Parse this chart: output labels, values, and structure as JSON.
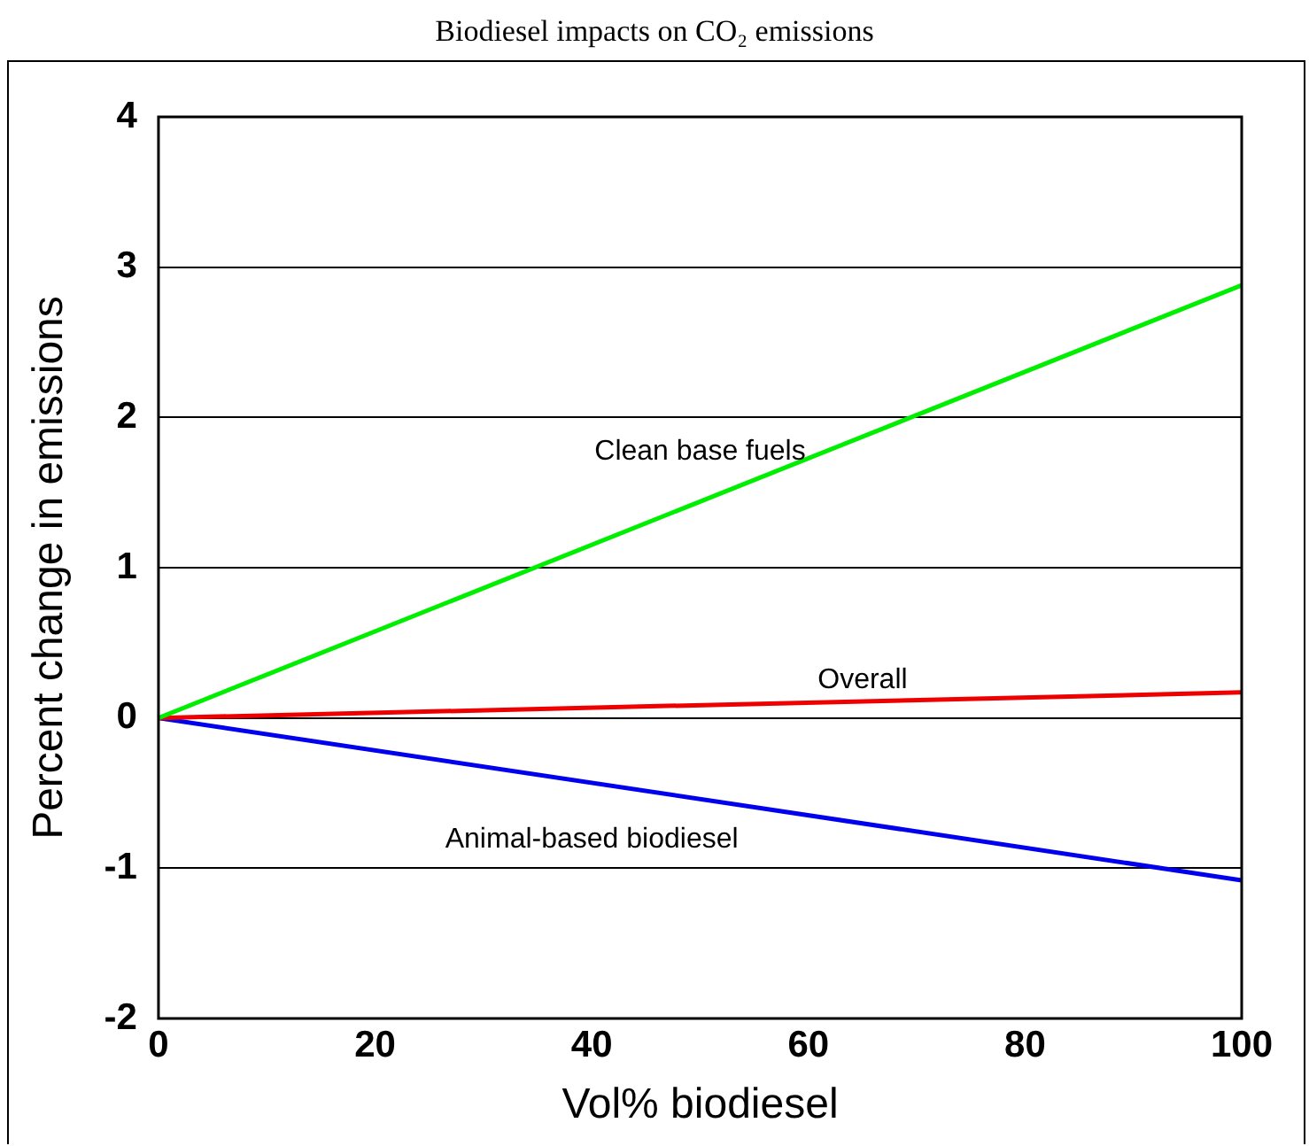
{
  "chart_data": {
    "type": "line",
    "title": "Biodiesel impacts on CO₂ emissions",
    "xlabel": "Vol% biodiesel",
    "ylabel": "Percent change in emissions",
    "x": [
      0,
      100
    ],
    "series": [
      {
        "name": "Clean base fuels",
        "color": "#00ee00",
        "values": [
          0,
          2.88
        ]
      },
      {
        "name": "Overall",
        "color": "#ee0000",
        "values": [
          0,
          0.17
        ]
      },
      {
        "name": "Animal-based biodiesel",
        "color": "#0000ee",
        "values": [
          0,
          -1.08
        ]
      }
    ],
    "xlim": [
      0,
      100
    ],
    "xticks": [
      0,
      20,
      40,
      60,
      80,
      100
    ],
    "ylim": [
      -2,
      4
    ],
    "yticks": [
      -2,
      -1,
      0,
      1,
      2,
      3,
      4
    ],
    "grid": "y",
    "legend": false,
    "marker": "none",
    "line_style": "solid"
  }
}
